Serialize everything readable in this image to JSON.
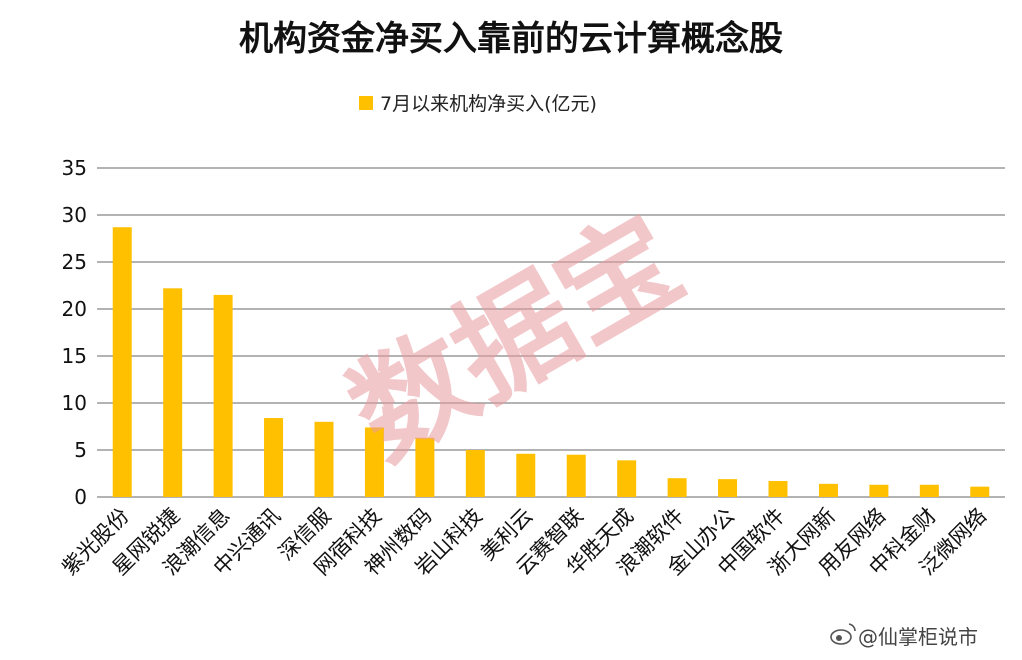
{
  "chart_data": {
    "type": "bar",
    "title": "机构资金净买入靠前的云计算概念股",
    "legend": {
      "position": "top"
    },
    "series": [
      {
        "name": "7月以来机构净买入(亿元)",
        "color": "#FFC000",
        "values": [
          28.7,
          22.2,
          21.5,
          8.4,
          8.0,
          7.4,
          6.3,
          5.0,
          4.6,
          4.5,
          3.9,
          2.0,
          1.9,
          1.7,
          1.4,
          1.3,
          1.3,
          1.1
        ]
      }
    ],
    "categories": [
      "紫光股份",
      "星网锐捷",
      "浪潮信息",
      "中兴通讯",
      "深信服",
      "网宿科技",
      "神州数码",
      "岩山科技",
      "美利云",
      "云赛智联",
      "华胜天成",
      "浪潮软件",
      "金山办公",
      "中国软件",
      "浙大网新",
      "用友网络",
      "中科金财",
      "泛微网络"
    ],
    "ylim": [
      0,
      35
    ],
    "yticks": [
      0,
      5,
      10,
      15,
      20,
      25,
      30,
      35
    ],
    "grid": true,
    "gridColor": "#9a9a9a"
  },
  "watermark": {
    "text": "数据宝",
    "color": "#e89aa0"
  },
  "credit": {
    "text": "@仙掌柜说市",
    "logo": "weibo-logo-icon"
  }
}
